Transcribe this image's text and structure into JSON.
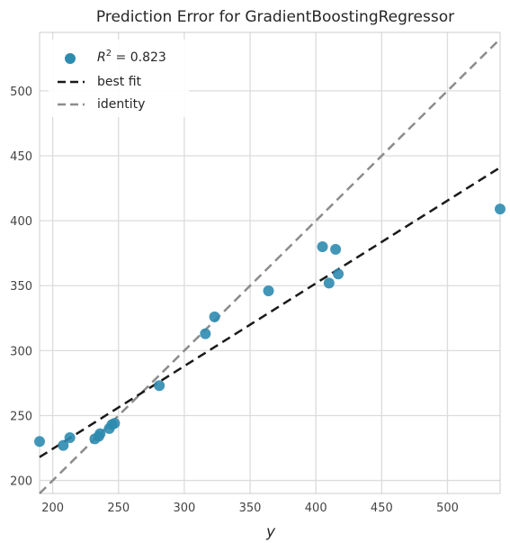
{
  "chart_data": {
    "type": "scatter",
    "title": "Prediction Error for GradientBoostingRegressor",
    "xlabel": "y",
    "ylabel": "",
    "xlim": [
      190,
      540
    ],
    "ylim": [
      190,
      545
    ],
    "xticks": [
      200,
      250,
      300,
      350,
      400,
      450,
      500
    ],
    "yticks": [
      200,
      250,
      300,
      350,
      400,
      450,
      500
    ],
    "grid": true,
    "legend_position": "top-left",
    "points": [
      {
        "x": 190,
        "y": 230
      },
      {
        "x": 208,
        "y": 227
      },
      {
        "x": 213,
        "y": 233
      },
      {
        "x": 232,
        "y": 232
      },
      {
        "x": 235,
        "y": 234
      },
      {
        "x": 236,
        "y": 236
      },
      {
        "x": 243,
        "y": 240
      },
      {
        "x": 245,
        "y": 243
      },
      {
        "x": 247,
        "y": 244
      },
      {
        "x": 281,
        "y": 273
      },
      {
        "x": 316,
        "y": 313
      },
      {
        "x": 323,
        "y": 326
      },
      {
        "x": 364,
        "y": 346
      },
      {
        "x": 405,
        "y": 380
      },
      {
        "x": 410,
        "y": 352
      },
      {
        "x": 415,
        "y": 378
      },
      {
        "x": 417,
        "y": 359
      },
      {
        "x": 540,
        "y": 409
      }
    ],
    "best_fit": {
      "x": [
        190,
        540
      ],
      "y": [
        218,
        441
      ]
    },
    "identity": {
      "x": [
        190,
        540
      ],
      "y": [
        190,
        540
      ]
    },
    "legend": {
      "r2_label": "R",
      "r2_exponent": "2",
      "r2_value": " = 0.823",
      "best_fit_label": "best fit",
      "identity_label": "identity"
    },
    "colors": {
      "points": "#2e8bb0",
      "best_fit": "#1a1a1a",
      "identity": "#8c8c8c",
      "grid": "#dcdcdc"
    }
  }
}
